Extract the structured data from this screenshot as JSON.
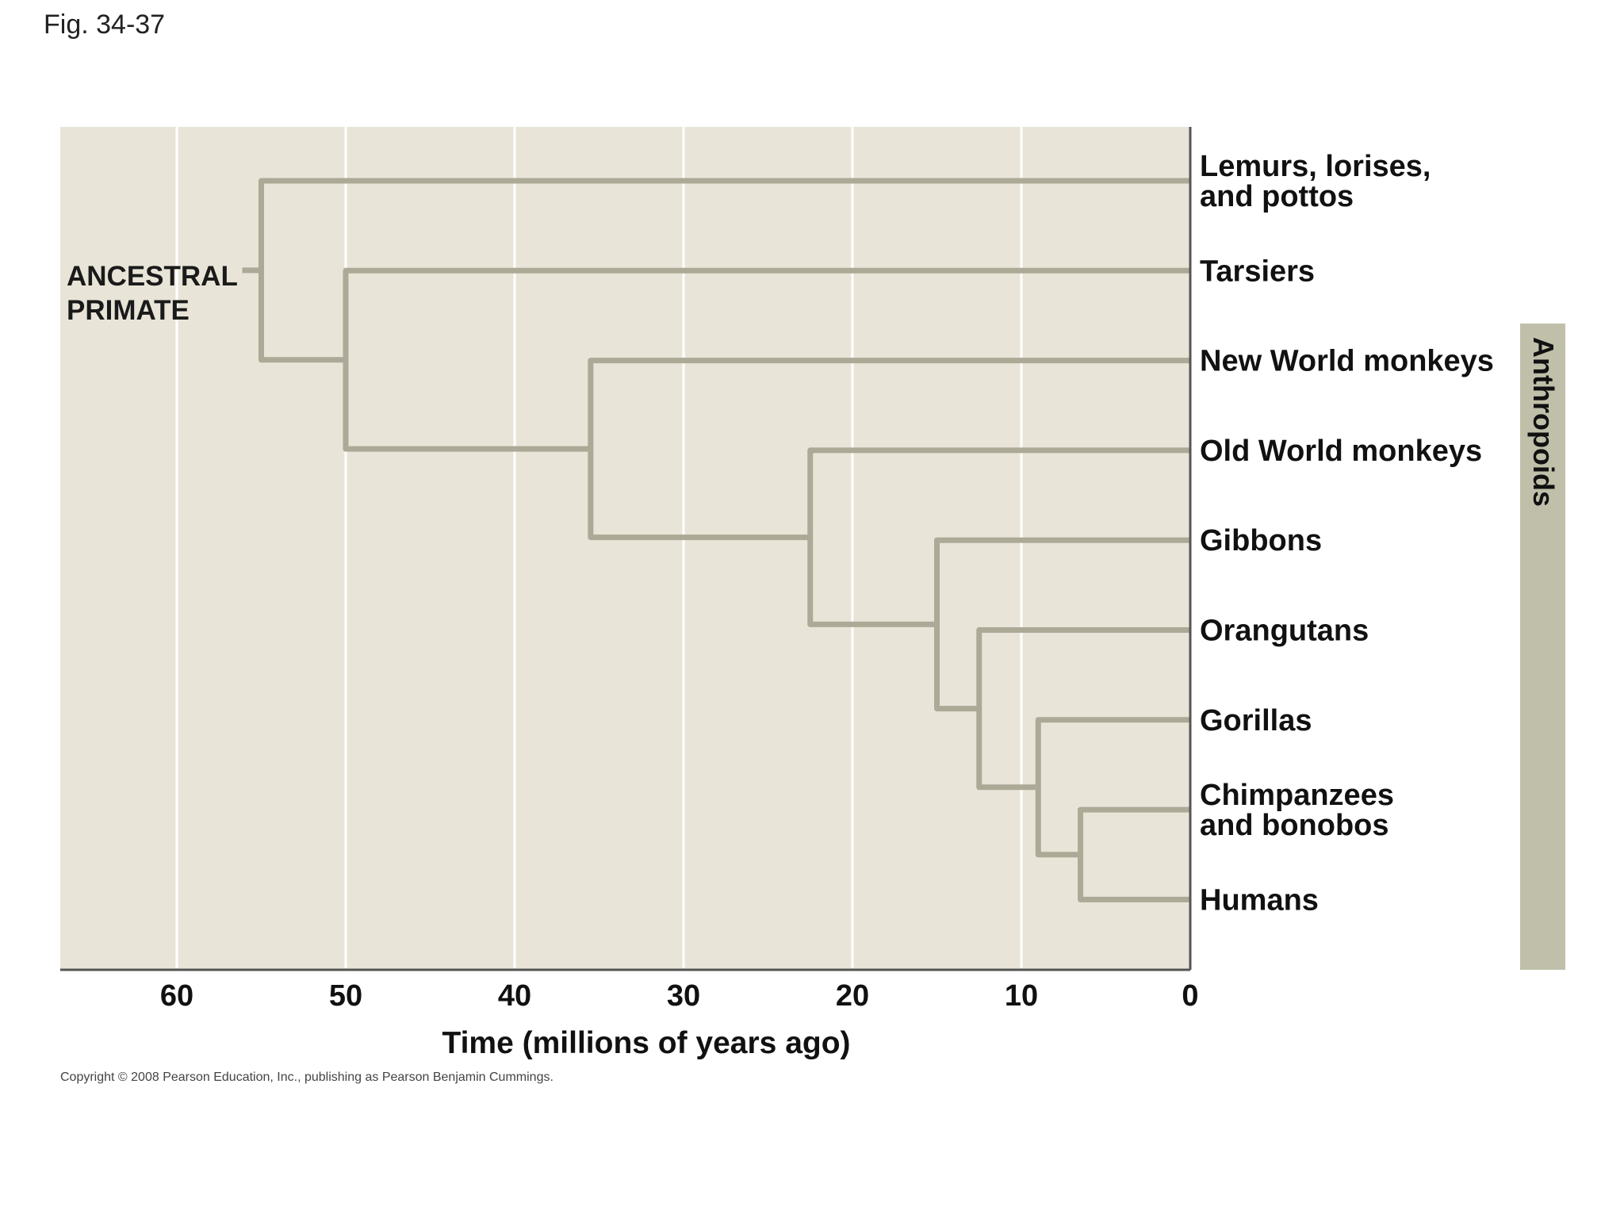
{
  "caption": "Fig. 34-37",
  "copyright": "Copyright © 2008 Pearson Education, Inc., publishing as Pearson Benjamin Cummings.",
  "axis": {
    "title": "Time (millions of years ago)",
    "ticks": [
      60,
      50,
      40,
      30,
      20,
      10,
      0
    ],
    "range": [
      67,
      0
    ]
  },
  "root_label": [
    "ANCESTRAL",
    "PRIMATE"
  ],
  "taxa": [
    {
      "id": "lemurs",
      "lines": [
        "Lemurs, lorises,",
        "and pottos"
      ]
    },
    {
      "id": "tarsiers",
      "lines": [
        "Tarsiers"
      ]
    },
    {
      "id": "nwm",
      "lines": [
        "New World monkeys"
      ]
    },
    {
      "id": "owm",
      "lines": [
        "Old World monkeys"
      ]
    },
    {
      "id": "gibbons",
      "lines": [
        "Gibbons"
      ]
    },
    {
      "id": "orangutans",
      "lines": [
        "Orangutans"
      ]
    },
    {
      "id": "gorillas",
      "lines": [
        "Gorillas"
      ]
    },
    {
      "id": "chimps",
      "lines": [
        "Chimpanzees",
        "and bonobos"
      ]
    },
    {
      "id": "humans",
      "lines": [
        "Humans"
      ]
    }
  ],
  "nodes": [
    {
      "id": "n_root",
      "time": 55,
      "children": [
        "lemurs",
        "n_haplo"
      ]
    },
    {
      "id": "n_haplo",
      "time": 50,
      "children": [
        "tarsiers",
        "n_anthro"
      ]
    },
    {
      "id": "n_anthro",
      "time": 35.5,
      "children": [
        "nwm",
        "n_catarr"
      ]
    },
    {
      "id": "n_catarr",
      "time": 22.5,
      "children": [
        "owm",
        "n_apes"
      ]
    },
    {
      "id": "n_apes",
      "time": 15,
      "children": [
        "gibbons",
        "n_great"
      ]
    },
    {
      "id": "n_great",
      "time": 12.5,
      "children": [
        "orangutans",
        "n_afr"
      ]
    },
    {
      "id": "n_afr",
      "time": 9,
      "children": [
        "gorillas",
        "n_hc"
      ]
    },
    {
      "id": "n_hc",
      "time": 6.5,
      "children": [
        "chimps",
        "humans"
      ]
    }
  ],
  "group_label": "Anthropoids",
  "colors": {
    "panel_bg": "#e8e5d8",
    "branch": "#aca997",
    "gridline": "#ffffff",
    "axis_line": "#555555",
    "group_bar": "#c0c0aa"
  }
}
